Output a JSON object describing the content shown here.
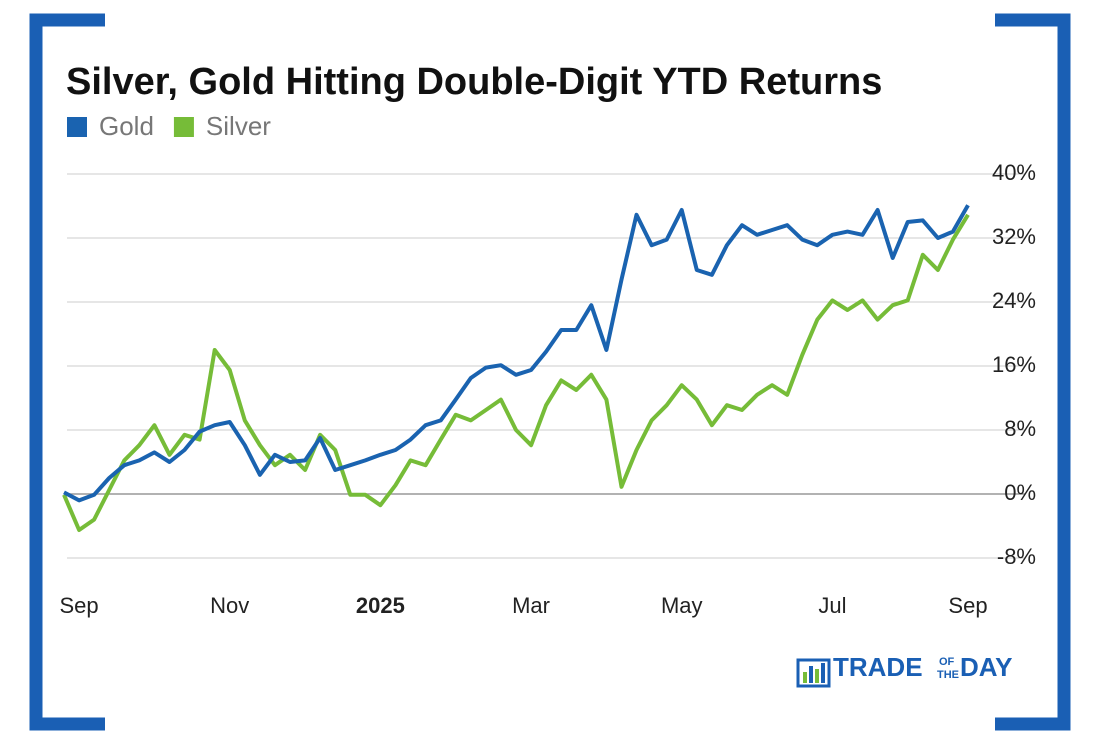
{
  "chart_data": {
    "type": "line",
    "title": "Silver, Gold Hitting Double-Digit YTD Returns",
    "categories": [
      null,
      "Sep",
      null,
      null,
      null,
      null,
      null,
      null,
      null,
      null,
      null,
      "Nov",
      null,
      null,
      null,
      null,
      null,
      null,
      null,
      null,
      null,
      "2025",
      null,
      null,
      null,
      null,
      null,
      null,
      null,
      null,
      null,
      "Mar",
      null,
      null,
      null,
      null,
      null,
      null,
      null,
      null,
      null,
      "May",
      null,
      null,
      null,
      null,
      null,
      null,
      null,
      null,
      null,
      "Jul",
      null,
      null,
      null,
      null,
      null,
      null,
      null,
      null,
      "Sep"
    ],
    "series": [
      {
        "name": "Gold",
        "color": "#1a63b0",
        "values": [
          0.2,
          -0.8,
          -0.1,
          2,
          3.6,
          4.2,
          5.2,
          4,
          5.5,
          7.8,
          8.6,
          9,
          6.1,
          2.4,
          4.9,
          4,
          4.2,
          7,
          3,
          3.6,
          4.2,
          4.9,
          5.5,
          6.8,
          8.6,
          9.2,
          11.8,
          14.5,
          15.8,
          16.1,
          14.9,
          15.5,
          17.8,
          20.5,
          20.5,
          23.6,
          18,
          26.8,
          34.9,
          31.1,
          31.8,
          35.5,
          28,
          27.4,
          31.1,
          33.6,
          32.4,
          33,
          33.6,
          31.8,
          31.1,
          32.4,
          32.8,
          32.4,
          35.5,
          29.5,
          34,
          34.2,
          32,
          32.8,
          36.1
        ]
      },
      {
        "name": "Silver",
        "color": "#76bc38",
        "values": [
          -0.1,
          -4.5,
          -3.2,
          0.5,
          4.2,
          6.1,
          8.6,
          4.9,
          7.4,
          6.8,
          18,
          15.5,
          9.2,
          6.1,
          3.6,
          4.9,
          3,
          7.4,
          5.5,
          -0.1,
          -0.1,
          -1.4,
          1.1,
          4.2,
          3.6,
          6.8,
          9.9,
          9.2,
          10.5,
          11.8,
          8,
          6.1,
          11.1,
          14.2,
          13,
          14.9,
          11.8,
          0.9,
          5.5,
          9.2,
          11.1,
          13.6,
          11.8,
          8.6,
          11.1,
          10.5,
          12.4,
          13.6,
          12.4,
          17.4,
          21.8,
          24.2,
          23,
          24.2,
          21.8,
          23.6,
          24.2,
          29.9,
          28,
          31.8,
          34.9
        ]
      }
    ],
    "ylim": [
      -8,
      40
    ],
    "yticks": [
      {
        "value": -8,
        "label": "-8%"
      },
      {
        "value": 0,
        "label": "0%"
      },
      {
        "value": 8,
        "label": "8%"
      },
      {
        "value": 16,
        "label": "16%"
      },
      {
        "value": 24,
        "label": "24%"
      },
      {
        "value": 32,
        "label": "32%"
      },
      {
        "value": 40,
        "label": "40%"
      }
    ],
    "grid": true
  },
  "logo": [
    "TRADE",
    "OF",
    "THE",
    "DAY"
  ]
}
